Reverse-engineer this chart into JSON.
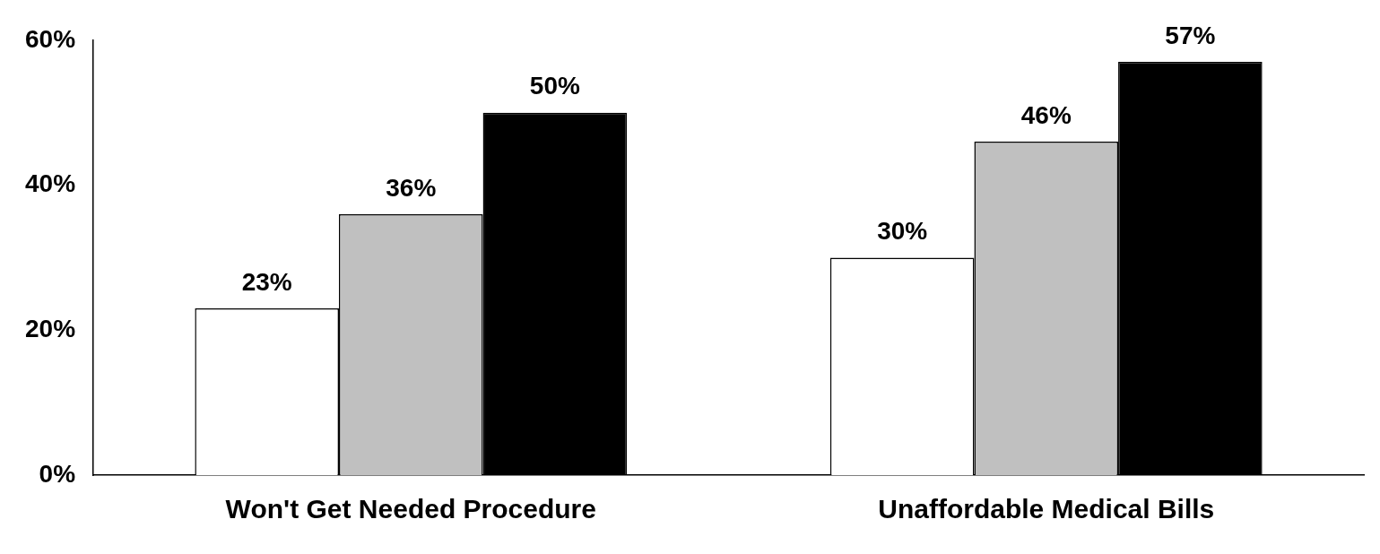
{
  "chart_data": {
    "type": "bar",
    "categories": [
      "Won't Get Needed Procedure",
      "Unaffordable Medical Bills"
    ],
    "series": [
      {
        "color": "#ffffff",
        "values": [
          23,
          30
        ],
        "value_labels": [
          "23%",
          "30%"
        ]
      },
      {
        "color": "#c0c0c0",
        "values": [
          36,
          46
        ],
        "value_labels": [
          "36%",
          "46%"
        ]
      },
      {
        "color": "#000000",
        "values": [
          50,
          57
        ],
        "value_labels": [
          "50%",
          "57%"
        ]
      }
    ],
    "ylim": [
      0,
      60
    ],
    "yticks": [
      {
        "value": 0,
        "label": "0%"
      },
      {
        "value": 20,
        "label": "20%"
      },
      {
        "value": 40,
        "label": "40%"
      },
      {
        "value": 60,
        "label": "60%"
      }
    ],
    "grid": false,
    "legend": false
  }
}
